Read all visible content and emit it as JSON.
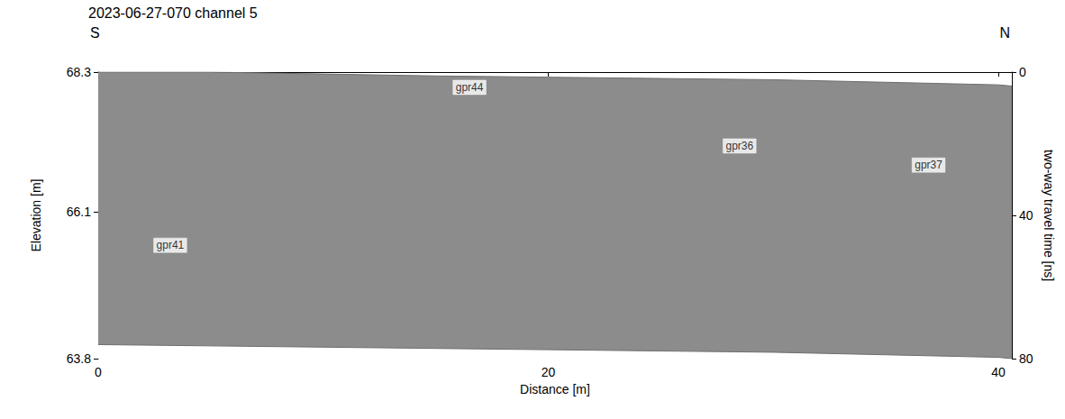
{
  "chart_data": {
    "type": "line",
    "title": "2023-06-27-070 channel 5",
    "x_end_labels": [
      "S",
      "N"
    ],
    "xlabel": "Distance [m]",
    "ylabel": "Elevation [m]",
    "y2label": "two-way travel time [ns]",
    "x": [
      0,
      5,
      10,
      15,
      20,
      25,
      30,
      35,
      40,
      40.6
    ],
    "series": [
      {
        "color": "#8c8c8c",
        "values": [
          68.3,
          68.3,
          68.27,
          68.24,
          68.22,
          68.2,
          68.18,
          68.14,
          68.1,
          68.08
        ]
      },
      {
        "color": "#ffffff",
        "values": [
          64.02,
          64.0,
          63.98,
          63.96,
          63.94,
          63.92,
          63.9,
          63.86,
          63.82,
          63.8
        ]
      }
    ],
    "annotations": [
      {
        "text": "gpr44",
        "x": 16.5,
        "y": 68.06
      },
      {
        "text": "gpr36",
        "x": 28.5,
        "y": 67.14
      },
      {
        "text": "gpr37",
        "x": 36.9,
        "y": 66.84
      },
      {
        "text": "gpr41",
        "x": 3.2,
        "y": 65.58
      }
    ],
    "xlim": [
      0,
      40.6
    ],
    "xticks": [
      0,
      20,
      40
    ],
    "ylim": [
      63.8,
      68.3
    ],
    "yticks": [
      63.8,
      66.1,
      68.3
    ],
    "y2lim": [
      0,
      80
    ],
    "y2ticks": [
      0,
      40,
      80
    ],
    "grid": false
  }
}
